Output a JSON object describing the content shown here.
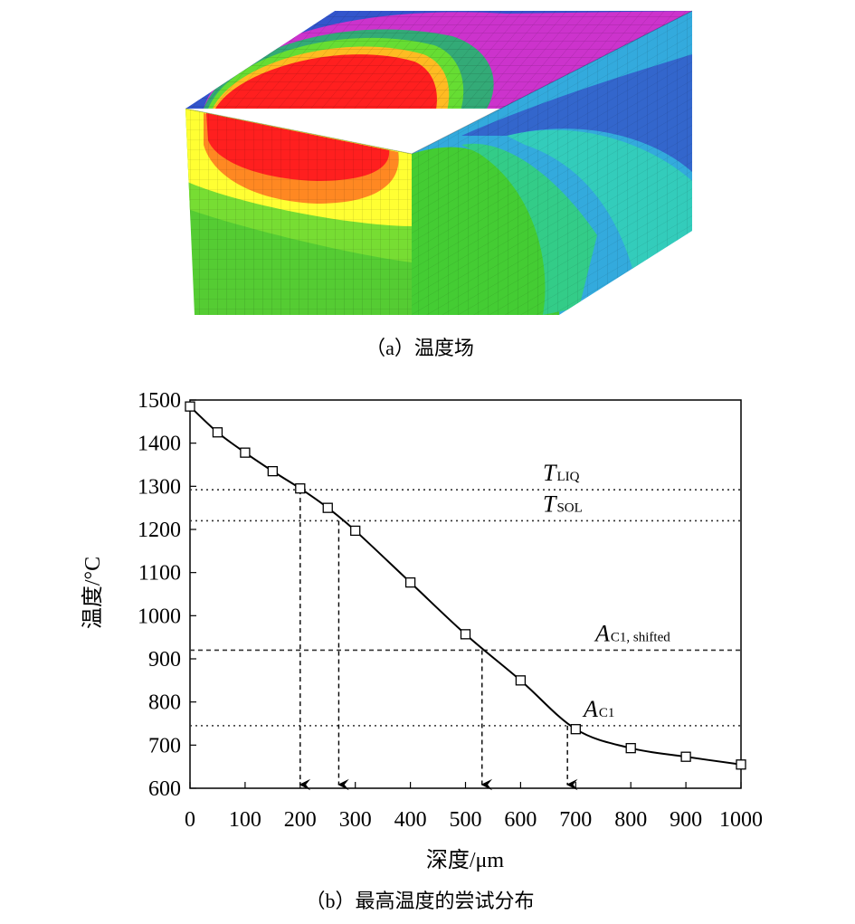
{
  "figure": {
    "caption_a": "（a）温度场",
    "caption_b": "（b）最高温度的尝试分布"
  },
  "temperature_field": {
    "type": "3d-contour-render",
    "colors": [
      "#ff1f1f",
      "#ff7f1f",
      "#ffff33",
      "#66dd33",
      "#33cc55",
      "#33ccaa",
      "#33aadd",
      "#3355cc",
      "#cc33cc"
    ]
  },
  "chart_data": {
    "type": "line",
    "xlabel": "深度/μm",
    "ylabel": "温度/°C",
    "xlim": [
      0,
      1000
    ],
    "ylim": [
      600,
      1500
    ],
    "xticks": [
      0,
      100,
      200,
      300,
      400,
      500,
      600,
      700,
      800,
      900,
      1000
    ],
    "yticks": [
      600,
      700,
      800,
      900,
      1000,
      1100,
      1200,
      1300,
      1400,
      1500
    ],
    "grid": false,
    "series": [
      {
        "marker": "square",
        "x": [
          0,
          50,
          100,
          150,
          200,
          250,
          300,
          400,
          500,
          600,
          700,
          800,
          900,
          1000
        ],
        "y": [
          1485,
          1425,
          1378,
          1335,
          1295,
          1250,
          1197,
          1077,
          957,
          850,
          737,
          693,
          673,
          655
        ]
      }
    ],
    "reference_lines": [
      {
        "main": "T",
        "sub": "LIQ",
        "y": 1292,
        "style": "dotted",
        "drop_x": 200
      },
      {
        "main": "T",
        "sub": "SOL",
        "y": 1220,
        "style": "dotted",
        "drop_x": 270
      },
      {
        "main": "A",
        "sub": "C1, shifted",
        "y": 920,
        "style": "dashed",
        "drop_x": 530
      },
      {
        "main": "A",
        "sub": "C1",
        "y": 745,
        "style": "dotted",
        "drop_x": 685
      }
    ]
  }
}
